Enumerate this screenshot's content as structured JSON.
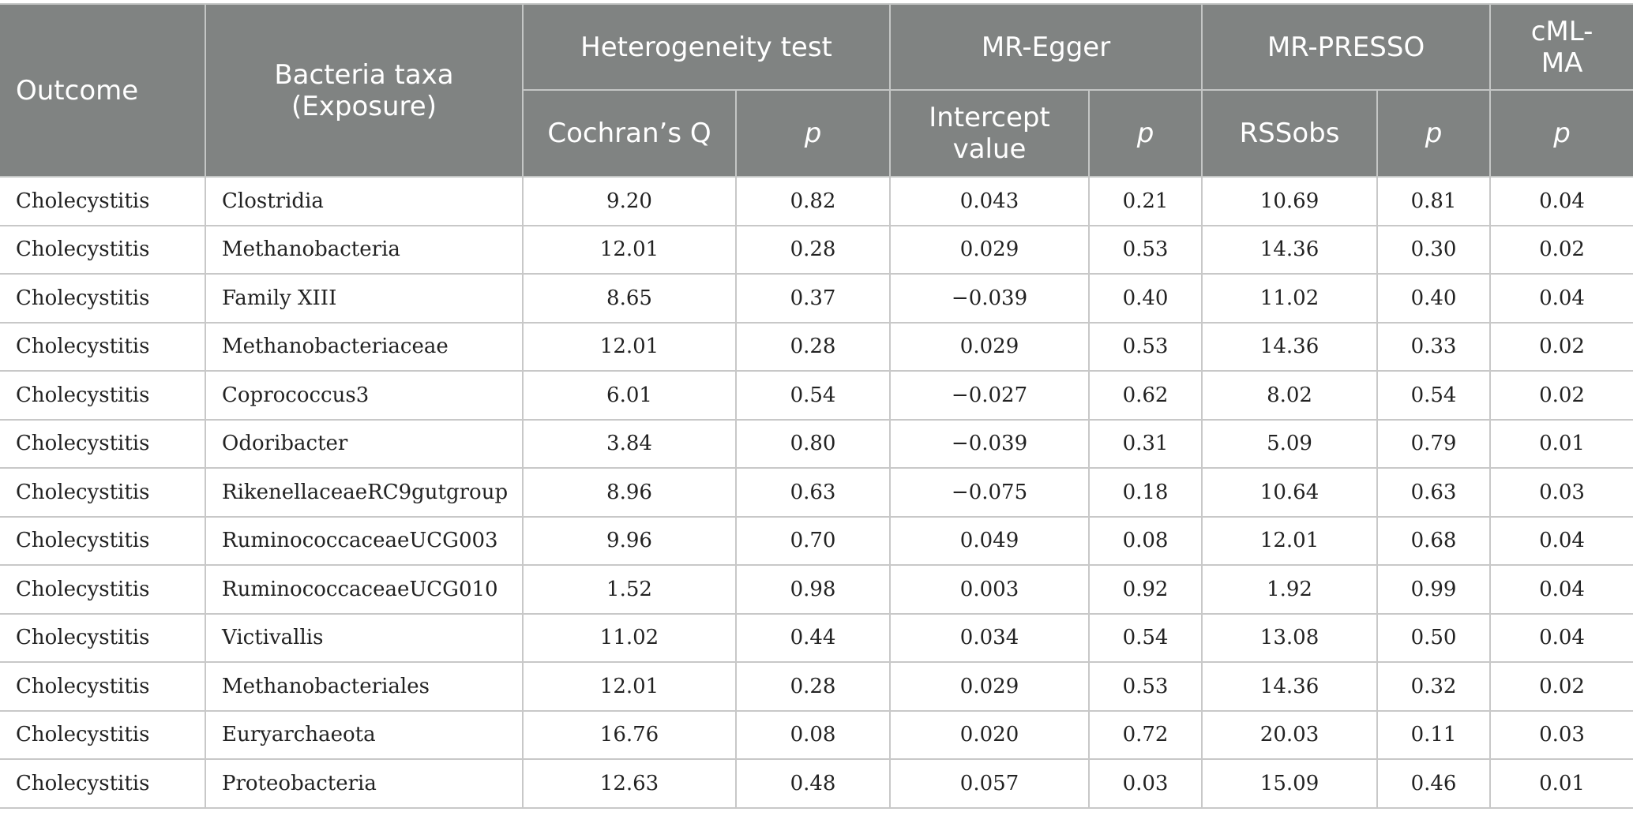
{
  "table": {
    "headers": {
      "outcome": "Outcome",
      "bacteria_line1": "Bacteria taxa",
      "bacteria_line2": "(Exposure)",
      "heterogeneity": "Heterogeneity test",
      "mr_egger": "MR-Egger",
      "mr_presso": "MR-PRESSO",
      "cml_line1": "cML-",
      "cml_line2": "MA",
      "cochrans_q": "Cochran’s Q",
      "p_het": "p",
      "intercept_line1": "Intercept",
      "intercept_line2": "value",
      "p_egger": "p",
      "rssobs": "RSSobs",
      "p_presso": "p",
      "p_cml": "p"
    },
    "rows": [
      [
        "Cholecystitis",
        "Clostridia",
        "9.20",
        "0.82",
        "0.043",
        "0.21",
        "10.69",
        "0.81",
        "0.04"
      ],
      [
        "Cholecystitis",
        "Methanobacteria",
        "12.01",
        "0.28",
        "0.029",
        "0.53",
        "14.36",
        "0.30",
        "0.02"
      ],
      [
        "Cholecystitis",
        "Family XIII",
        "8.65",
        "0.37",
        "−0.039",
        "0.40",
        "11.02",
        "0.40",
        "0.04"
      ],
      [
        "Cholecystitis",
        "Methanobacteriaceae",
        "12.01",
        "0.28",
        "0.029",
        "0.53",
        "14.36",
        "0.33",
        "0.02"
      ],
      [
        "Cholecystitis",
        "Coprococcus3",
        "6.01",
        "0.54",
        "−0.027",
        "0.62",
        "8.02",
        "0.54",
        "0.02"
      ],
      [
        "Cholecystitis",
        "Odoribacter",
        "3.84",
        "0.80",
        "−0.039",
        "0.31",
        "5.09",
        "0.79",
        "0.01"
      ],
      [
        "Cholecystitis",
        "RikenellaceaeRC9gutgroup",
        "8.96",
        "0.63",
        "−0.075",
        "0.18",
        "10.64",
        "0.63",
        "0.03"
      ],
      [
        "Cholecystitis",
        "RuminococcaceaeUCG003",
        "9.96",
        "0.70",
        "0.049",
        "0.08",
        "12.01",
        "0.68",
        "0.04"
      ],
      [
        "Cholecystitis",
        "RuminococcaceaeUCG010",
        "1.52",
        "0.98",
        "0.003",
        "0.92",
        "1.92",
        "0.99",
        "0.04"
      ],
      [
        "Cholecystitis",
        "Victivallis",
        "11.02",
        "0.44",
        "0.034",
        "0.54",
        "13.08",
        "0.50",
        "0.04"
      ],
      [
        "Cholecystitis",
        "Methanobacteriales",
        "12.01",
        "0.28",
        "0.029",
        "0.53",
        "14.36",
        "0.32",
        "0.02"
      ],
      [
        "Cholecystitis",
        "Euryarchaeota",
        "16.76",
        "0.08",
        "0.020",
        "0.72",
        "20.03",
        "0.11",
        "0.03"
      ],
      [
        "Cholecystitis",
        "Proteobacteria",
        "12.63",
        "0.48",
        "0.057",
        "0.03",
        "15.09",
        "0.46",
        "0.01"
      ]
    ]
  }
}
